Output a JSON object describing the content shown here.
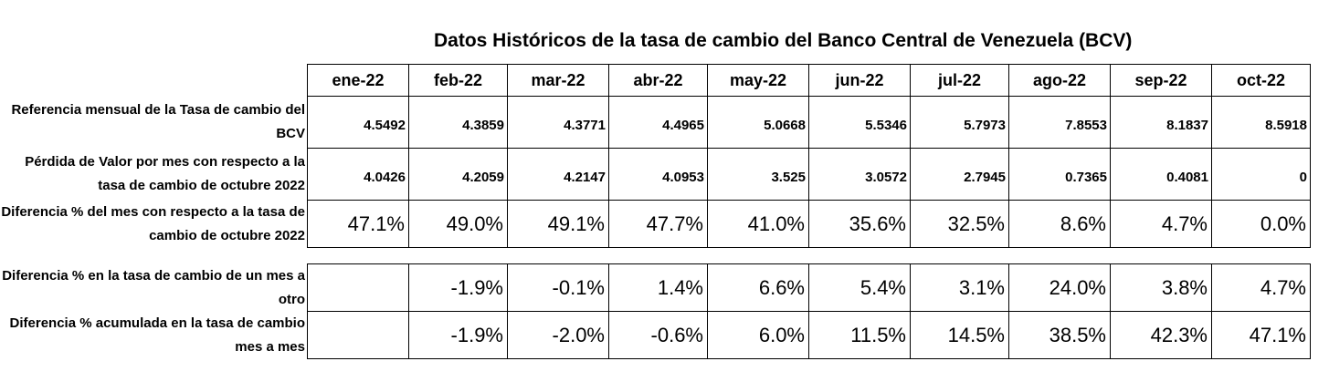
{
  "title": "Datos Históricos de la tasa de cambio del Banco Central de Venezuela (BCV)",
  "months": [
    "ene-22",
    "feb-22",
    "mar-22",
    "abr-22",
    "may-22",
    "jun-22",
    "jul-22",
    "ago-22",
    "sep-22",
    "oct-22"
  ],
  "table1": {
    "rows": [
      {
        "label": "Referencia mensual de la Tasa de cambio del BCV",
        "values": [
          "4.5492",
          "4.3859",
          "4.3771",
          "4.4965",
          "5.0668",
          "5.5346",
          "5.7973",
          "7.8553",
          "8.1837",
          "8.5918"
        ]
      },
      {
        "label": "Pérdida de Valor por mes con respecto a la tasa de cambio de octubre 2022",
        "values": [
          "4.0426",
          "4.2059",
          "4.2147",
          "4.0953",
          "3.525",
          "3.0572",
          "2.7945",
          "0.7365",
          "0.4081",
          "0"
        ]
      },
      {
        "label": "Diferencia % del mes con respecto a la tasa de cambio de octubre 2022",
        "values": [
          "47.1%",
          "49.0%",
          "49.1%",
          "47.7%",
          "41.0%",
          "35.6%",
          "32.5%",
          "8.6%",
          "4.7%",
          "0.0%"
        ]
      }
    ]
  },
  "table2": {
    "rows": [
      {
        "label": "Diferencia % en la tasa de cambio de un mes a otro",
        "values": [
          "",
          "-1.9%",
          "-0.1%",
          "1.4%",
          "6.6%",
          "5.4%",
          "3.1%",
          "24.0%",
          "3.8%",
          "4.7%"
        ]
      },
      {
        "label": "Diferencia % acumulada en la tasa de cambio mes a mes",
        "values": [
          "",
          "-1.9%",
          "-2.0%",
          "-0.6%",
          "6.0%",
          "11.5%",
          "14.5%",
          "38.5%",
          "42.3%",
          "47.1%"
        ]
      }
    ]
  }
}
